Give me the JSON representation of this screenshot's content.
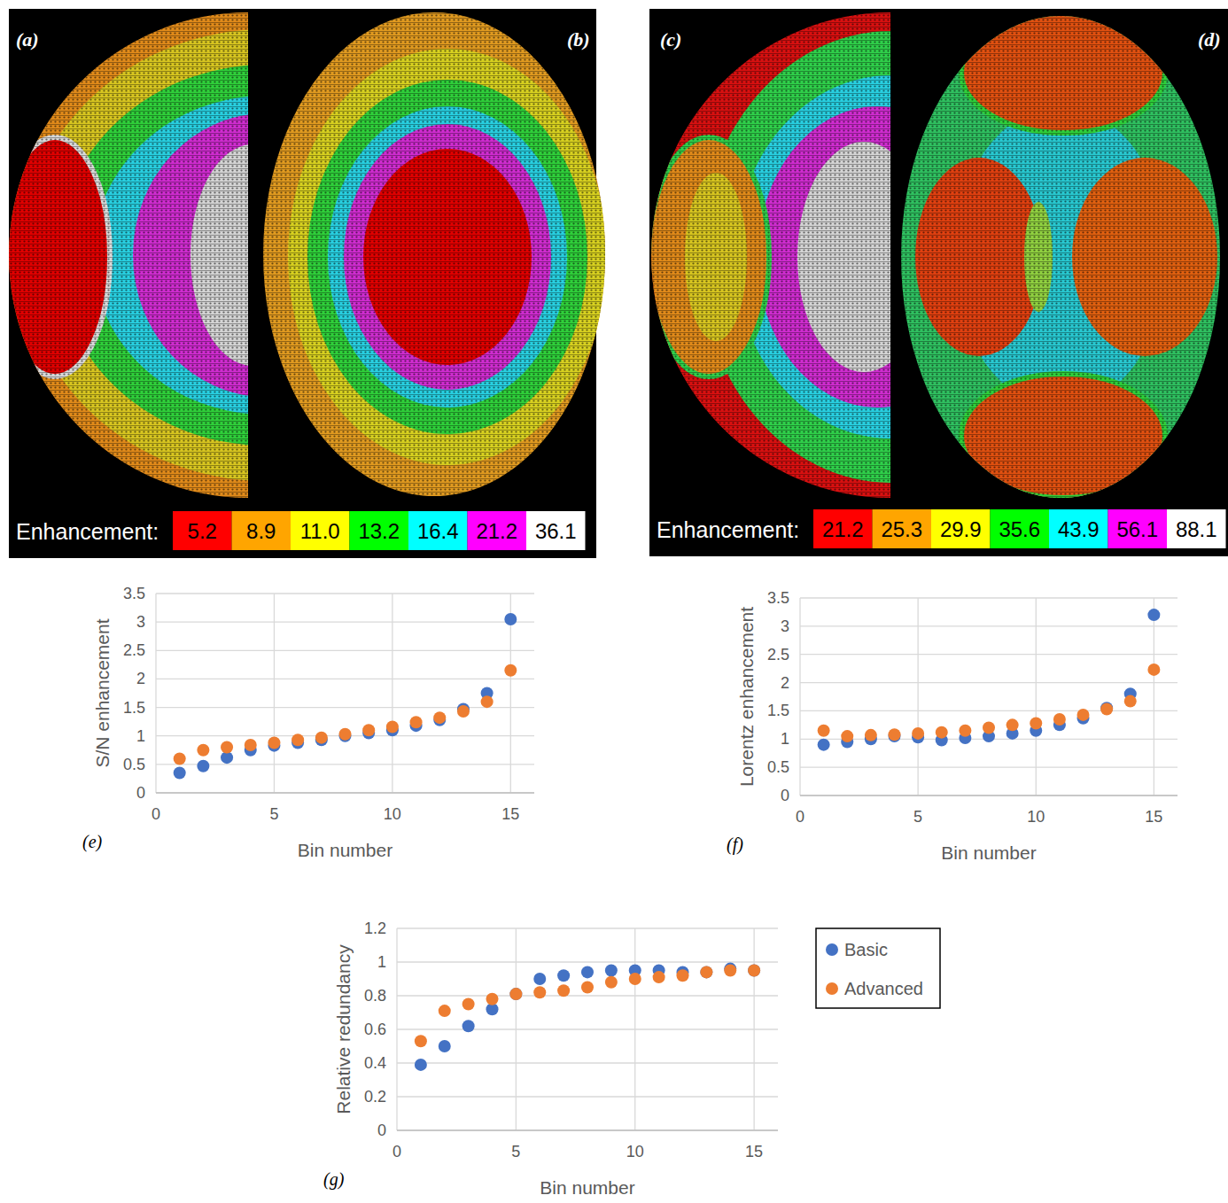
{
  "chart_data": [
    {
      "type": "scatter",
      "annotations": [
        "(e)"
      ],
      "x_label": "Bin number",
      "y_label": "S/N enhancement",
      "x": [
        1,
        2,
        3,
        4,
        5,
        6,
        7,
        8,
        9,
        10,
        11,
        12,
        13,
        14,
        15
      ],
      "series": [
        {
          "color": "#4472c4",
          "marker": "circle",
          "values": [
            0.35,
            0.47,
            0.62,
            0.75,
            0.83,
            0.88,
            0.93,
            1.0,
            1.05,
            1.1,
            1.18,
            1.28,
            1.47,
            1.75,
            3.05
          ]
        },
        {
          "color": "#ed7d31",
          "marker": "circle",
          "values": [
            0.6,
            0.75,
            0.8,
            0.84,
            0.88,
            0.93,
            0.97,
            1.03,
            1.1,
            1.16,
            1.24,
            1.32,
            1.43,
            1.6,
            2.15
          ]
        }
      ],
      "xlim": [
        0,
        16
      ],
      "xticks": [
        0,
        5,
        10,
        15
      ],
      "ylim": [
        0,
        3.5
      ],
      "yticks": [
        0,
        0.5,
        1,
        1.5,
        2,
        2.5,
        3,
        3.5
      ],
      "grid": true
    },
    {
      "type": "scatter",
      "annotations": [
        "(f)"
      ],
      "x_label": "Bin number",
      "y_label": "Lorentz enhancement",
      "x": [
        1,
        2,
        3,
        4,
        5,
        6,
        7,
        8,
        9,
        10,
        11,
        12,
        13,
        14,
        15
      ],
      "series": [
        {
          "color": "#4472c4",
          "marker": "circle",
          "values": [
            0.9,
            0.95,
            1.0,
            1.05,
            1.03,
            0.98,
            1.02,
            1.05,
            1.1,
            1.15,
            1.25,
            1.37,
            1.55,
            1.8,
            3.2
          ]
        },
        {
          "color": "#ed7d31",
          "marker": "circle",
          "values": [
            1.15,
            1.05,
            1.07,
            1.08,
            1.1,
            1.12,
            1.15,
            1.2,
            1.25,
            1.28,
            1.35,
            1.43,
            1.53,
            1.67,
            2.23
          ]
        }
      ],
      "xlim": [
        0,
        16
      ],
      "xticks": [
        0,
        5,
        10,
        15
      ],
      "ylim": [
        0,
        3.5
      ],
      "yticks": [
        0,
        0.5,
        1,
        1.5,
        2,
        2.5,
        3,
        3.5
      ],
      "grid": true
    },
    {
      "type": "scatter",
      "annotations": [
        "(g)"
      ],
      "x_label": "Bin number",
      "y_label": "Relative redundancy",
      "x": [
        1,
        2,
        3,
        4,
        5,
        6,
        7,
        8,
        9,
        10,
        11,
        12,
        13,
        14,
        15
      ],
      "series": [
        {
          "name": "Basic",
          "color": "#4472c4",
          "marker": "circle",
          "values": [
            0.39,
            0.5,
            0.62,
            0.72,
            0.81,
            0.9,
            0.92,
            0.94,
            0.95,
            0.95,
            0.95,
            0.94,
            0.94,
            0.96,
            0.95
          ]
        },
        {
          "name": "Advanced",
          "color": "#ed7d31",
          "marker": "circle",
          "values": [
            0.53,
            0.71,
            0.75,
            0.78,
            0.81,
            0.82,
            0.83,
            0.85,
            0.88,
            0.9,
            0.91,
            0.92,
            0.94,
            0.95,
            0.95
          ]
        }
      ],
      "xlim": [
        0,
        16
      ],
      "xticks": [
        0,
        5,
        10,
        15
      ],
      "ylim": [
        0,
        1.2
      ],
      "yticks": [
        0,
        0.2,
        0.4,
        0.6,
        0.8,
        1,
        1.2
      ],
      "grid": true,
      "legend": "right"
    }
  ],
  "renderings": {
    "panels": [
      "(a)",
      "(b)",
      "(c)",
      "(d)"
    ]
  },
  "color_maps": [
    {
      "label": "Enhancement:",
      "entries": [
        {
          "value": 5.2,
          "color": "#ff0000"
        },
        {
          "value": 8.9,
          "color": "#ffa500"
        },
        {
          "value": 11,
          "label": "11.0",
          "color": "#ffff00"
        },
        {
          "value": 13.2,
          "color": "#00ff00"
        },
        {
          "value": 16.4,
          "color": "#00ffff"
        },
        {
          "value": 21.2,
          "color": "#ff00ff"
        },
        {
          "value": 36.1,
          "color": "#ffffff"
        }
      ]
    },
    {
      "label": "Enhancement:",
      "entries": [
        {
          "value": 21.2,
          "color": "#ff0000"
        },
        {
          "value": 25.3,
          "color": "#ffa500"
        },
        {
          "value": 29.9,
          "color": "#ffff00"
        },
        {
          "value": 35.6,
          "color": "#00ff00"
        },
        {
          "value": 43.9,
          "color": "#00ffff"
        },
        {
          "value": 56.1,
          "color": "#ff00ff"
        },
        {
          "value": 88.1,
          "color": "#ffffff"
        }
      ]
    }
  ]
}
